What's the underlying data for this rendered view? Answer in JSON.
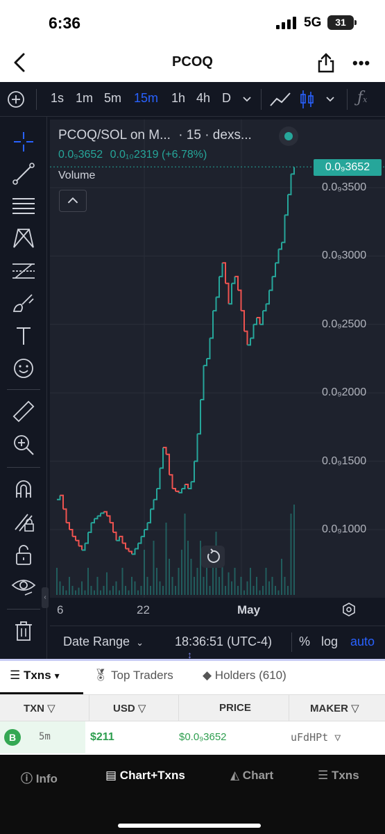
{
  "status": {
    "time": "6:36",
    "network": "5G",
    "battery": "31"
  },
  "nav": {
    "title": "PCOQ"
  },
  "toolbar": {
    "intervals": [
      "1s",
      "1m",
      "5m",
      "15m",
      "1h",
      "4h",
      "D"
    ],
    "active_interval": "15m"
  },
  "legend": {
    "title": "PCOQ/SOL on M...",
    "interval": "· 15 · dexs...",
    "price": "0.0₉3652",
    "change": "0.0₁₀2319 (+6.78%)",
    "volume": "Volume"
  },
  "chart_data": {
    "type": "line",
    "title": "PCOQ/SOL on M... · 15 · dexs...",
    "x_ticks": [
      "6",
      "22",
      "May"
    ],
    "y_ticks": [
      "0.0₉3500",
      "0.0₉3000",
      "0.0₉2500",
      "0.0₉2000",
      "0.0₉1500",
      "0.0₉1000"
    ],
    "y_unit": "×1e-10 SOL",
    "ylim": [
      0.75,
      3.75
    ],
    "last_price": "0.0₉3652",
    "series": [
      {
        "values": [
          1.22,
          1.25,
          1.15,
          1.05,
          1.0,
          0.95,
          0.92,
          0.88,
          0.85,
          0.9,
          0.98,
          1.05,
          1.08,
          1.1,
          1.12,
          1.13,
          1.1,
          1.05,
          0.98,
          0.92,
          0.95,
          0.9,
          0.86,
          0.84,
          0.82,
          0.86,
          0.9,
          0.95,
          1.0,
          1.05,
          1.15,
          1.22,
          1.3,
          1.45,
          1.6,
          1.55,
          1.4,
          1.3,
          1.28,
          1.27,
          1.3,
          1.33,
          1.3,
          1.35,
          1.5,
          1.7,
          1.95,
          2.2,
          2.25,
          2.4,
          2.6,
          2.7,
          2.85,
          2.95,
          2.8,
          2.65,
          2.8,
          2.85,
          2.75,
          2.6,
          2.45,
          2.35,
          2.4,
          2.5,
          2.55,
          2.5,
          2.6,
          2.65,
          2.75,
          2.85,
          2.95,
          3.05,
          3.1,
          3.3,
          3.45,
          3.6,
          3.65
        ]
      }
    ],
    "volume": [
      0.3,
      0.15,
      0.1,
      0.05,
      0.2,
      0.1,
      0.05,
      0.08,
      0.15,
      0.05,
      0.3,
      0.1,
      0.05,
      0.2,
      0.05,
      0.1,
      0.25,
      0.05,
      0.1,
      0.15,
      0.05,
      0.3,
      0.1,
      0.05,
      0.2,
      0.15,
      0.05,
      0.1,
      0.5,
      0.2,
      0.1,
      0.6,
      0.3,
      0.15,
      0.1,
      0.8,
      0.4,
      0.2,
      0.1,
      0.3,
      0.5,
      0.9,
      0.6,
      0.4,
      0.2,
      0.3,
      0.6,
      0.2,
      0.5,
      0.1,
      0.3,
      0.7,
      0.2,
      0.4,
      0.1,
      0.25,
      0.15,
      0.3,
      0.1,
      0.2,
      0.05,
      0.15,
      0.3,
      0.1,
      0.2,
      0.05,
      0.1,
      0.3,
      0.15,
      0.2,
      0.1,
      0.05,
      0.4,
      0.2,
      0.1,
      0.9,
      1.0
    ]
  },
  "bottom_controls": {
    "date_range": "Date Range",
    "clock": "18:36:51 (UTC-4)",
    "percent": "%",
    "log": "log",
    "auto": "auto"
  },
  "txns": {
    "tabs": [
      {
        "label": "Txns"
      },
      {
        "label": "Top Traders"
      },
      {
        "label": "Holders (610)"
      }
    ],
    "columns": [
      "TXN",
      "USD",
      "PRICE",
      "MAKER"
    ],
    "rows": [
      {
        "type": "B",
        "age": "5m",
        "usd": "$211",
        "price": "$0.0₉3652",
        "maker": "uFdHPt"
      }
    ]
  },
  "bottom_nav": {
    "items": [
      "Info",
      "Chart+Txns",
      "Chart",
      "Txns"
    ],
    "active": "Chart+Txns"
  },
  "colors": {
    "up": "#26a69a",
    "down": "#ef5350",
    "bg": "#131722",
    "accent": "#2962ff"
  }
}
